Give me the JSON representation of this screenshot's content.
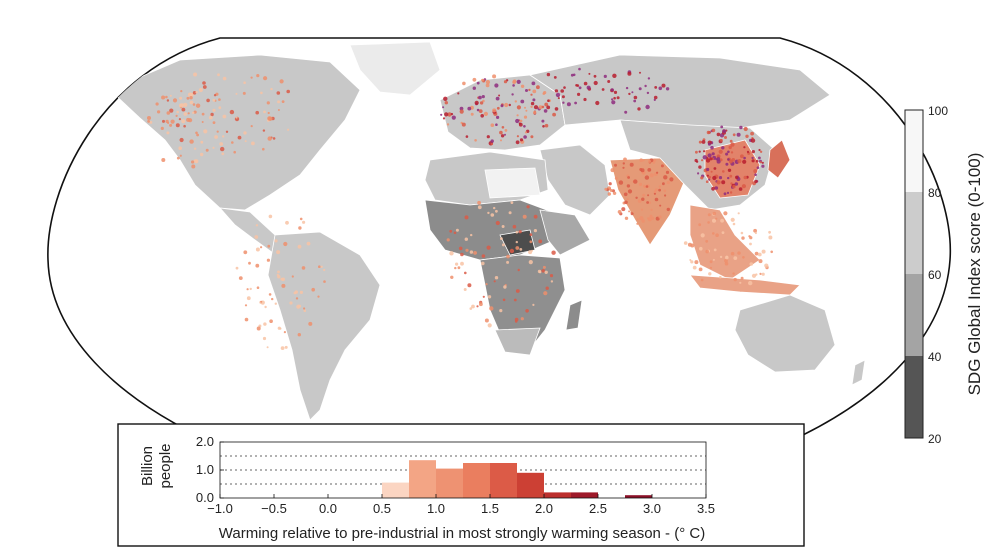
{
  "colorbar": {
    "title": "SDG Global Index score (0-100)",
    "ticks": [
      "100",
      "80",
      "60",
      "40",
      "20"
    ],
    "band_colors": [
      "#f7f7f7",
      "#cccccc",
      "#a4a4a4",
      "#7c7c7c",
      "#555555"
    ]
  },
  "map": {
    "projection": "Robinson",
    "point_colors": [
      "#f8c3a5",
      "#ee8f6c",
      "#db5a47",
      "#b81d2e",
      "#8e2b7e"
    ]
  },
  "chart_data": {
    "type": "bar",
    "ylabel": "Billion\npeople",
    "ylabel_lines": [
      "Billion",
      "people"
    ],
    "xlabel": "Warming relative to pre-industrial in most strongly warming season - (° C)",
    "xlim": [
      -1.0,
      3.5
    ],
    "ylim": [
      0.0,
      2.0
    ],
    "x_ticks": [
      "−1.0",
      "−0.5",
      "0.0",
      "0.5",
      "1.0",
      "1.5",
      "2.0",
      "2.5",
      "3.0",
      "3.5"
    ],
    "x_tick_values": [
      -1.0,
      -0.5,
      0.0,
      0.5,
      1.0,
      1.5,
      2.0,
      2.5,
      3.0,
      3.5
    ],
    "y_ticks": [
      "0.0",
      "1.0",
      "2.0"
    ],
    "y_tick_values": [
      0.0,
      1.0,
      2.0
    ],
    "grid": "dashed horizontal",
    "bins": [
      {
        "x0": 0.5,
        "x1": 0.75,
        "value": 0.55,
        "color": "#fbd5c2"
      },
      {
        "x0": 0.75,
        "x1": 1.0,
        "value": 1.35,
        "color": "#f3a585"
      },
      {
        "x0": 1.0,
        "x1": 1.25,
        "value": 1.05,
        "color": "#ee9272"
      },
      {
        "x0": 1.25,
        "x1": 1.5,
        "value": 1.25,
        "color": "#ea7e5f"
      },
      {
        "x0": 1.5,
        "x1": 1.75,
        "value": 1.25,
        "color": "#dc5b47"
      },
      {
        "x0": 1.75,
        "x1": 2.0,
        "value": 0.9,
        "color": "#cc4034"
      },
      {
        "x0": 2.0,
        "x1": 2.25,
        "value": 0.2,
        "color": "#bc2f2d"
      },
      {
        "x0": 2.25,
        "x1": 2.5,
        "value": 0.2,
        "color": "#9e1a2a"
      },
      {
        "x0": 2.5,
        "x1": 2.75,
        "value": 0.0,
        "color": "#9e1a2a"
      },
      {
        "x0": 2.75,
        "x1": 3.0,
        "value": 0.1,
        "color": "#8b1028"
      }
    ]
  }
}
